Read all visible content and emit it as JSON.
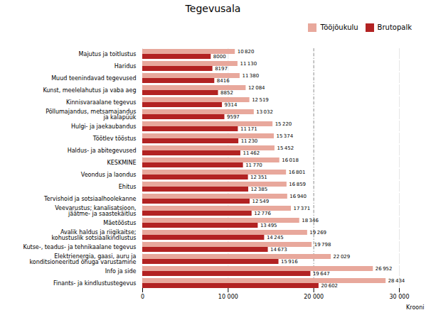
{
  "chart_data": {
    "type": "bar",
    "orientation": "horizontal",
    "title": "Tegevusala",
    "xlabel": "Krooni",
    "categories": [
      "Majutus ja toitlustus",
      "Haridus",
      "Muud teenindavad tegevused",
      "Kunst, meelelahutus ja vaba aeg",
      "Kinnisvaraalane tegevus",
      "Põllumajandus, metsamajandus\nja kalapüük",
      "Hulgi- ja jaekaubandus",
      "Töötlev tööstus",
      "Haldus- ja abitegevused",
      "KESKMINE",
      "Veondus ja laondus",
      "Ehitus",
      "Tervishoid ja sotsiaalhoolekanne",
      "Veevarustus; kanalisatsioon,\njäätme- ja saastekäitlus",
      "Mäetööstus",
      "Avalik haldus ja riigikaitse;\nkohustuslik sotsiaalkindlustus",
      "Kutse-, teadus- ja tehnikaalane tegevus",
      "Elektrienergia, gaasi, auru ja\nkonditsioneeritud õhuga varustamine",
      "Info ja side",
      "Finants- ja kindlustustegevus"
    ],
    "series": [
      {
        "name": "Tööjõukulu",
        "color": "#e8a89c",
        "values": [
          10820,
          11130,
          11380,
          12084,
          12519,
          13032,
          15220,
          15374,
          15452,
          16018,
          16801,
          16859,
          16940,
          17371,
          18346,
          19269,
          19798,
          22029,
          26952,
          28434
        ],
        "value_labels": [
          "10 820",
          "11 130",
          "11 380",
          "12 084",
          "12 519",
          "13 032",
          "15 220",
          "15 374",
          "15 452",
          "16 018",
          "16 801",
          "16 859",
          "16 940",
          "17 371",
          "18 346",
          "19 269",
          "19 798",
          "22 029",
          "26 952",
          "28 434"
        ]
      },
      {
        "name": "Brutopalk",
        "color": "#b22222",
        "values": [
          8000,
          8197,
          8416,
          8852,
          9314,
          9597,
          11171,
          11230,
          11462,
          11770,
          12351,
          12385,
          12549,
          12776,
          13495,
          14245,
          14673,
          15916,
          19647,
          20602
        ],
        "value_labels": [
          "8000",
          "8197",
          "8416",
          "8852",
          "9314",
          "9597",
          "11 171",
          "11 230",
          "11 462",
          "11 770",
          "12 351",
          "12 385",
          "12 549",
          "12 776",
          "13 495",
          "14 245",
          "14 673",
          "15 916",
          "19 647",
          "20 602"
        ]
      }
    ],
    "xlim": [
      0,
      30000
    ],
    "xticks": [
      0,
      {
        "value": 10000,
        "label": "10 000"
      },
      {
        "value": 20000,
        "label": "20 000"
      },
      {
        "value": 30000,
        "label": "30 000"
      }
    ],
    "reference_lines": [
      {
        "x": 20000
      }
    ],
    "grid": true,
    "legend": "upper right",
    "data_labels": true
  }
}
